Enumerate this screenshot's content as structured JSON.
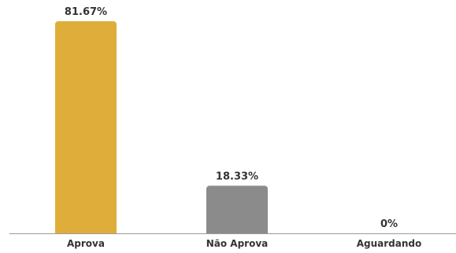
{
  "chart_data": {
    "type": "bar",
    "categories": [
      "Aprova",
      "Não Aprova",
      "Aguardando"
    ],
    "values": [
      81.67,
      18.33,
      0
    ],
    "data_labels": [
      "81.67%",
      "18.33%",
      "0%"
    ],
    "colors": [
      "#dfae3a",
      "#8b8b8b",
      "#cccccc"
    ],
    "ylim": [
      0,
      90
    ],
    "grid": false,
    "legend": "none",
    "title": "",
    "xlabel": "",
    "ylabel": ""
  }
}
